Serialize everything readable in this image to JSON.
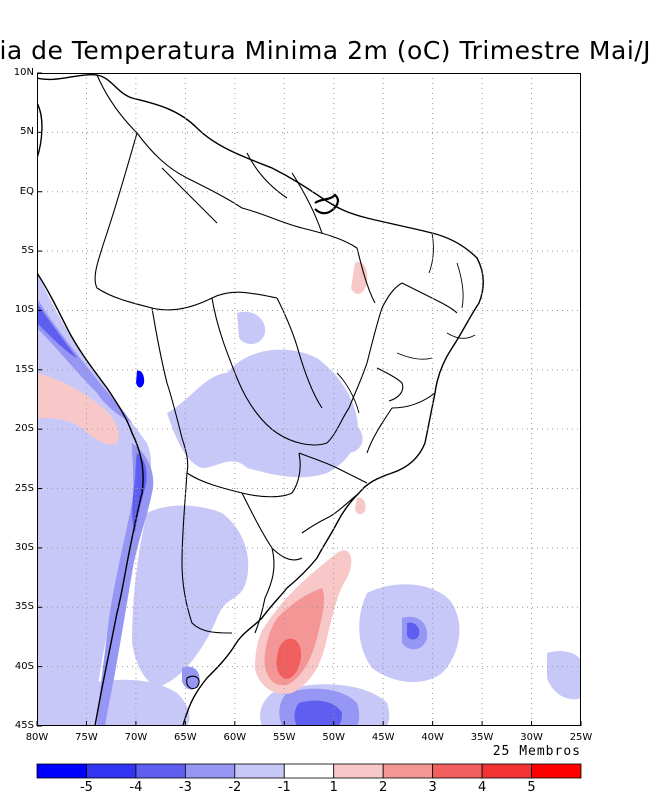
{
  "title": "lia de Temperatura Minima 2m (oC) Trimestre Mai/J",
  "ensemble_label": "25 Membros",
  "lat_labels": [
    "10N",
    "5N",
    "EQ",
    "5S",
    "10S",
    "15S",
    "20S",
    "25S",
    "30S",
    "35S",
    "40S",
    "45S"
  ],
  "lon_labels": [
    "80W",
    "75W",
    "70W",
    "65W",
    "60W",
    "55W",
    "50W",
    "45W",
    "40W",
    "35W",
    "30W",
    "25W"
  ],
  "colorbar": {
    "colors": [
      "#0000ff",
      "#3333f2",
      "#5e5ef0",
      "#9696f4",
      "#c8c8f8",
      "#ffffff",
      "#f8c8c8",
      "#f49696",
      "#f05e5e",
      "#f23333",
      "#ff0000"
    ],
    "tick_labels": [
      "-5",
      "-4",
      "-3",
      "-2",
      "-1",
      "1",
      "2",
      "3",
      "4",
      "5"
    ]
  },
  "shading_colors": {
    "cold_1": "#c8c8f8",
    "cold_2": "#9696f4",
    "cold_3": "#5e5ef0",
    "cold_4": "#3333f2",
    "cold_5": "#0000ff",
    "warm_1": "#f8c8c8",
    "warm_2": "#f49696",
    "warm_3": "#f05e5e"
  },
  "map_extent": {
    "lon": [
      -80,
      -25
    ],
    "lat": [
      -45,
      10
    ]
  }
}
